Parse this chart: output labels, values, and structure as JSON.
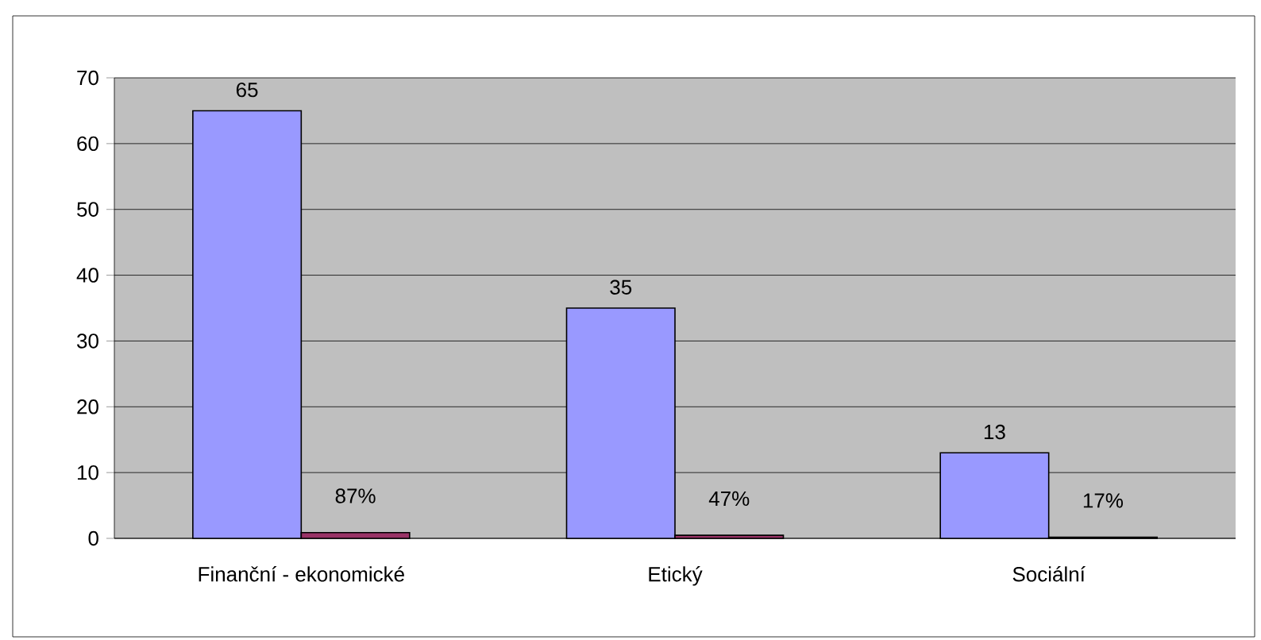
{
  "chart_data": {
    "type": "bar",
    "categories": [
      "Finanční - ekonomické",
      "Etický",
      "Sociální"
    ],
    "series": [
      {
        "color": "#9999ff",
        "values": [
          65,
          35,
          13
        ],
        "value_labels": [
          "65",
          "35",
          "13"
        ]
      },
      {
        "color": "#993366",
        "values": [
          0.87,
          0.47,
          0.17
        ],
        "value_labels": [
          "87%",
          "47%",
          "17%"
        ]
      }
    ],
    "ylim": [
      0,
      70
    ],
    "yticks": [
      0,
      10,
      20,
      30,
      40,
      50,
      60,
      70
    ],
    "grid": "y"
  }
}
